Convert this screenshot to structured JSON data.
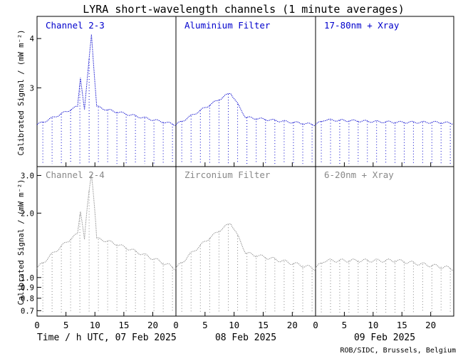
{
  "title": "LYRA short-wavelength channels (1 minute averages)",
  "ylabel_top": "Calibrated Signal / (mW m⁻²)",
  "ylabel_bottom": "Calibrated Signal / (mW m⁻²)",
  "xlabel_prefix": "Time / h UTC, 07 Feb 2025",
  "day_labels": [
    "08 Feb 2025",
    "09 Feb 2025"
  ],
  "credit": "ROB/SIDC, Brussels, Belgium",
  "colors": {
    "top": "#0000cc",
    "bottom": "#888888",
    "axes": "#000000"
  },
  "chart_data": [
    {
      "type": "scatter",
      "row": "top",
      "panels": [
        "Channel 2-3",
        "Aluminium Filter",
        "17-80nm + Xray"
      ],
      "yscale": "linear",
      "ylim": [
        1.4,
        4.45
      ],
      "yticks": [
        4,
        3
      ],
      "xticks": [
        0,
        5,
        10,
        15,
        20
      ],
      "xlim": [
        0,
        24
      ],
      "series": [
        {
          "name": "Channel 2-3",
          "baseline": 2.25,
          "x": [
            0,
            7,
            7.5,
            8.2,
            9.4,
            10.3,
            12.2,
            24
          ],
          "y": [
            2.25,
            2.62,
            3.22,
            2.55,
            4.1,
            2.62,
            2.55,
            2.25
          ]
        },
        {
          "name": "Aluminium Filter",
          "baseline": 2.25,
          "x": [
            0,
            9.4,
            12,
            24
          ],
          "y": [
            2.25,
            2.9,
            2.4,
            2.25
          ]
        },
        {
          "name": "17-80nm + Xray",
          "baseline": 2.25,
          "x": [
            0,
            1.5,
            14,
            21,
            24
          ],
          "y": [
            2.25,
            2.35,
            2.3,
            2.3,
            2.28
          ]
        }
      ]
    },
    {
      "type": "scatter",
      "row": "bottom",
      "panels": [
        "Channel 2-4",
        "Zirconium Filter",
        "6-20nm + Xray"
      ],
      "yscale": "log",
      "ylim": [
        0.66,
        3.3
      ],
      "yticks": [
        3.0,
        2.0,
        1.0,
        0.9,
        0.8,
        0.7
      ],
      "xticks": [
        0,
        5,
        10,
        15,
        20
      ],
      "xlim": [
        0,
        24
      ],
      "series": [
        {
          "name": "Channel 2-4",
          "baseline": 1.1,
          "x": [
            0,
            7,
            7.5,
            8.2,
            9.4,
            10.3,
            12.2,
            24
          ],
          "y": [
            1.1,
            1.6,
            2.05,
            1.5,
            3.05,
            1.52,
            1.48,
            1.1
          ]
        },
        {
          "name": "Zirconium Filter",
          "baseline": 1.1,
          "x": [
            0,
            9.4,
            12,
            24
          ],
          "y": [
            1.1,
            1.8,
            1.3,
            1.1
          ]
        },
        {
          "name": "6-20nm + Xray",
          "baseline": 1.1,
          "x": [
            0,
            1.5,
            14,
            24
          ],
          "y": [
            1.1,
            1.2,
            1.2,
            1.1
          ]
        }
      ]
    }
  ]
}
